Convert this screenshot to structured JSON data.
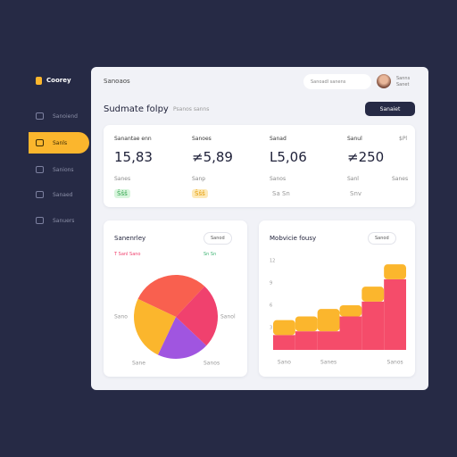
{
  "brand": "Coorey",
  "sidebar": [
    "Sanoiend",
    "Sanls",
    "Sanions",
    "Sanaed",
    "Sanuers"
  ],
  "header": {
    "title": "Sanoaos",
    "search": "Sanoadl sanens",
    "user": "Sanns Sanet"
  },
  "page": {
    "title": "Sudmate folpy",
    "subtitle": "Psanos sanns",
    "button": "Sanaiet"
  },
  "stats": [
    {
      "label": "Sanantae enn",
      "value": "15,83",
      "note": "Sanes",
      "badge": "Ŝŝŝ"
    },
    {
      "label": "Sanoes",
      "value": "≠5,89",
      "note": "Sanp",
      "badge": "Ŝŝŝ"
    },
    {
      "label": "Sanad",
      "value": "L5,06",
      "note": "Sanos",
      "badge": "Sa Sn"
    },
    {
      "label": "Sanul",
      "value": "≠250",
      "note": "Sanl",
      "badge": "Snv",
      "extra": "$Pl",
      "extra_note": "Sanes"
    }
  ],
  "pie": {
    "type": "pie",
    "title": "Sanenrley",
    "button": "Sanod",
    "legend": [
      "T Sanl Sano",
      "Sn Sn"
    ],
    "labels": [
      "Sano",
      "Sanol",
      "Sane",
      "Sanos"
    ],
    "values": [
      30,
      25,
      20,
      25
    ],
    "colors": [
      "#f9604f",
      "#f0416e",
      "#a055e0",
      "#fbb62d"
    ]
  },
  "area": {
    "type": "bar",
    "stacked": true,
    "title": "Mobvicie fousy",
    "button": "Sanod",
    "categories": [
      "Sano",
      null,
      "Sanes",
      null,
      null,
      "Sanos"
    ],
    "series": [
      {
        "color": "#f54c6a",
        "values": [
          2,
          2.5,
          2.5,
          4.5,
          6.5,
          9.5
        ]
      },
      {
        "color": "#fbb62d",
        "values": [
          2,
          2,
          3,
          1.5,
          2,
          2
        ]
      }
    ],
    "ylim": [
      0,
      12
    ],
    "yticks": [
      3,
      6,
      9,
      12
    ]
  }
}
